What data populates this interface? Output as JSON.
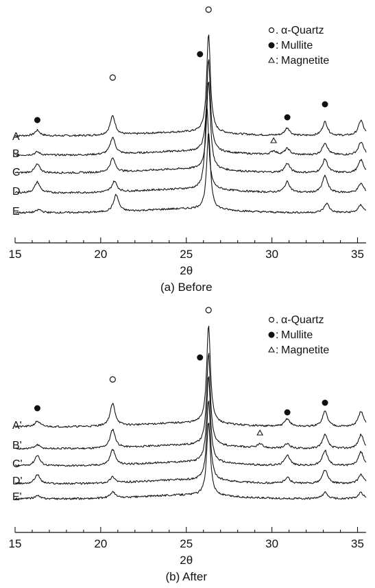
{
  "chart_data": [
    {
      "type": "line",
      "caption": "(a) Before",
      "xlabel": "2θ",
      "xlim": [
        15,
        35.5
      ],
      "xticks": [
        15,
        20,
        25,
        30,
        35
      ],
      "y_axis_shown": false,
      "legend": {
        "position": "top-right",
        "entries": [
          {
            "symbol": "open-circle",
            "label": "α-Quartz"
          },
          {
            "symbol": "filled-circle",
            "label": "Mullite"
          },
          {
            "symbol": "open-triangle",
            "label": "Magnetite"
          }
        ]
      },
      "phase_markers": [
        {
          "symbol": "filled-circle",
          "x": 16.3
        },
        {
          "symbol": "open-circle",
          "x": 20.7
        },
        {
          "symbol": "filled-circle",
          "x": 25.8
        },
        {
          "symbol": "open-circle",
          "x": 26.3
        },
        {
          "symbol": "open-triangle",
          "x": 30.1
        },
        {
          "symbol": "filled-circle",
          "x": 30.9
        },
        {
          "symbol": "filled-circle",
          "x": 33.1
        }
      ],
      "series": [
        {
          "name": "A",
          "peaks": [
            [
              16.3,
              0.18
            ],
            [
              20.7,
              0.62
            ],
            [
              26.3,
              3.2
            ],
            [
              30.9,
              0.25
            ],
            [
              33.1,
              0.45
            ],
            [
              35.2,
              0.5
            ]
          ]
        },
        {
          "name": "B",
          "peaks": [
            [
              16.3,
              0.1
            ],
            [
              20.7,
              0.55
            ],
            [
              26.3,
              3.0
            ],
            [
              30.1,
              0.12
            ],
            [
              30.9,
              0.2
            ],
            [
              33.1,
              0.4
            ],
            [
              35.2,
              0.42
            ]
          ]
        },
        {
          "name": "C",
          "peaks": [
            [
              16.3,
              0.28
            ],
            [
              20.7,
              0.45
            ],
            [
              26.3,
              2.9
            ],
            [
              30.9,
              0.3
            ],
            [
              33.1,
              0.45
            ],
            [
              35.2,
              0.42
            ]
          ]
        },
        {
          "name": "D",
          "peaks": [
            [
              16.3,
              0.35
            ],
            [
              20.8,
              0.35
            ],
            [
              26.2,
              2.7
            ],
            [
              30.9,
              0.35
            ],
            [
              33.1,
              0.55
            ],
            [
              35.2,
              0.3
            ]
          ]
        },
        {
          "name": "E",
          "peaks": [
            [
              16.4,
              0.1
            ],
            [
              20.9,
              0.55
            ],
            [
              26.3,
              2.5
            ],
            [
              33.2,
              0.3
            ],
            [
              35.2,
              0.25
            ]
          ]
        }
      ]
    },
    {
      "type": "line",
      "caption": "(b) After",
      "xlabel": "2θ",
      "xlim": [
        15,
        35.5
      ],
      "xticks": [
        15,
        20,
        25,
        30,
        35
      ],
      "y_axis_shown": false,
      "legend": {
        "position": "top-right",
        "entries": [
          {
            "symbol": "open-circle",
            "label": "α-Quartz"
          },
          {
            "symbol": "filled-circle",
            "label": "Mullite"
          },
          {
            "symbol": "open-triangle",
            "label": "Magnetite"
          }
        ]
      },
      "phase_markers": [
        {
          "symbol": "filled-circle",
          "x": 16.3
        },
        {
          "symbol": "open-circle",
          "x": 20.7
        },
        {
          "symbol": "filled-circle",
          "x": 25.8
        },
        {
          "symbol": "open-circle",
          "x": 26.3
        },
        {
          "symbol": "open-triangle",
          "x": 29.3
        },
        {
          "symbol": "filled-circle",
          "x": 30.9
        },
        {
          "symbol": "filled-circle",
          "x": 33.1
        }
      ],
      "series": [
        {
          "name": "A'",
          "peaks": [
            [
              16.3,
              0.18
            ],
            [
              20.7,
              0.72
            ],
            [
              26.3,
              3.2
            ],
            [
              30.9,
              0.25
            ],
            [
              33.1,
              0.5
            ],
            [
              35.2,
              0.5
            ]
          ]
        },
        {
          "name": "B'",
          "peaks": [
            [
              16.3,
              0.12
            ],
            [
              20.7,
              0.6
            ],
            [
              26.3,
              3.0
            ],
            [
              29.3,
              0.12
            ],
            [
              30.9,
              0.15
            ],
            [
              33.1,
              0.45
            ],
            [
              35.2,
              0.45
            ]
          ]
        },
        {
          "name": "C'",
          "peaks": [
            [
              16.3,
              0.35
            ],
            [
              20.7,
              0.5
            ],
            [
              26.3,
              2.8
            ],
            [
              30.9,
              0.35
            ],
            [
              33.1,
              0.5
            ],
            [
              35.2,
              0.45
            ]
          ]
        },
        {
          "name": "D'",
          "peaks": [
            [
              16.3,
              0.3
            ],
            [
              20.7,
              0.2
            ],
            [
              26.3,
              2.6
            ],
            [
              30.9,
              0.2
            ],
            [
              33.1,
              0.45
            ],
            [
              35.2,
              0.3
            ]
          ]
        },
        {
          "name": "E'",
          "peaks": [
            [
              16.3,
              0.1
            ],
            [
              20.7,
              0.2
            ],
            [
              26.3,
              2.4
            ],
            [
              33.1,
              0.2
            ],
            [
              35.2,
              0.2
            ]
          ]
        }
      ]
    }
  ]
}
